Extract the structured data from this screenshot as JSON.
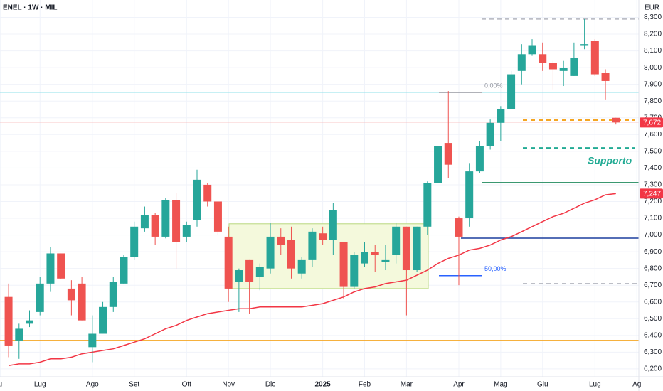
{
  "chart_data": {
    "type": "candlestick",
    "title": "ENEL · 1W · MIL",
    "currency": "EUR",
    "up_color": "#26a69a",
    "down_color": "#ef5350",
    "ohlc": [
      [
        6.63,
        6.71,
        6.27,
        6.34
      ],
      [
        6.37,
        6.47,
        6.26,
        6.44
      ],
      [
        6.47,
        6.55,
        6.45,
        6.49
      ],
      [
        6.54,
        6.75,
        6.52,
        6.71
      ],
      [
        6.71,
        6.93,
        6.66,
        6.89
      ],
      [
        6.89,
        6.89,
        6.74,
        6.74
      ],
      [
        6.68,
        6.73,
        6.52,
        6.61
      ],
      [
        6.71,
        6.75,
        6.49,
        6.49
      ],
      [
        6.33,
        6.52,
        6.24,
        6.41
      ],
      [
        6.41,
        6.6,
        6.41,
        6.57
      ],
      [
        6.57,
        6.75,
        6.54,
        6.72
      ],
      [
        6.71,
        6.88,
        6.71,
        6.87
      ],
      [
        6.87,
        7.08,
        6.85,
        7.05
      ],
      [
        7.04,
        7.17,
        7.02,
        7.12
      ],
      [
        7.12,
        7.13,
        6.94,
        6.99
      ],
      [
        6.99,
        7.22,
        6.98,
        7.21
      ],
      [
        7.21,
        7.25,
        6.8,
        6.96
      ],
      [
        6.99,
        7.08,
        6.96,
        7.06
      ],
      [
        7.09,
        7.39,
        7.05,
        7.33
      ],
      [
        7.3,
        7.31,
        7.17,
        7.2
      ],
      [
        7.2,
        7.2,
        7.0,
        7.02
      ],
      [
        6.99,
        7.05,
        6.6,
        6.68
      ],
      [
        6.72,
        6.8,
        6.54,
        6.79
      ],
      [
        6.85,
        6.85,
        6.53,
        6.72
      ],
      [
        6.75,
        6.83,
        6.67,
        6.81
      ],
      [
        6.8,
        7.07,
        6.77,
        6.99
      ],
      [
        6.99,
        7.04,
        6.88,
        6.94
      ],
      [
        6.97,
        7.05,
        6.74,
        6.8
      ],
      [
        6.77,
        6.87,
        6.74,
        6.85
      ],
      [
        6.85,
        7.04,
        6.81,
        7.02
      ],
      [
        7.01,
        7.05,
        6.94,
        6.97
      ],
      [
        6.97,
        7.19,
        6.88,
        7.15
      ],
      [
        6.96,
        6.96,
        6.62,
        6.69
      ],
      [
        6.69,
        6.9,
        6.68,
        6.88
      ],
      [
        6.83,
        6.96,
        6.81,
        6.9
      ],
      [
        6.9,
        6.94,
        6.78,
        6.88
      ],
      [
        6.84,
        6.94,
        6.79,
        6.85
      ],
      [
        6.88,
        7.07,
        6.83,
        7.05
      ],
      [
        7.05,
        7.05,
        6.52,
        6.79
      ],
      [
        6.79,
        7.05,
        6.78,
        7.05
      ],
      [
        7.05,
        7.32,
        7.0,
        7.31
      ],
      [
        7.31,
        7.53,
        7.31,
        7.53
      ],
      [
        7.55,
        7.86,
        7.34,
        7.42
      ],
      [
        7.1,
        7.11,
        6.7,
        6.99
      ],
      [
        7.1,
        7.43,
        7.05,
        7.38
      ],
      [
        7.38,
        7.56,
        7.37,
        7.53
      ],
      [
        7.53,
        7.69,
        7.51,
        7.67
      ],
      [
        7.67,
        7.77,
        7.56,
        7.75
      ],
      [
        7.75,
        7.98,
        7.75,
        7.96
      ],
      [
        7.98,
        8.14,
        7.9,
        8.08
      ],
      [
        8.08,
        8.17,
        8.07,
        8.13
      ],
      [
        8.08,
        8.15,
        7.98,
        8.03
      ],
      [
        8.03,
        8.04,
        7.87,
        7.99
      ],
      [
        7.98,
        8.04,
        7.89,
        8.0
      ],
      [
        7.95,
        8.15,
        7.95,
        8.06
      ],
      [
        8.13,
        8.29,
        8.11,
        8.14
      ],
      [
        8.16,
        8.17,
        7.95,
        7.96
      ],
      [
        7.97,
        7.99,
        7.81,
        7.92
      ],
      [
        7.7,
        7.7,
        7.66,
        7.672
      ]
    ],
    "ma": {
      "color": "#f23645",
      "values": [
        6.22,
        6.23,
        6.23,
        6.24,
        6.26,
        6.26,
        6.27,
        6.29,
        6.3,
        6.31,
        6.32,
        6.34,
        6.36,
        6.38,
        6.41,
        6.44,
        6.46,
        6.49,
        6.51,
        6.53,
        6.54,
        6.55,
        6.56,
        6.56,
        6.57,
        6.57,
        6.57,
        6.57,
        6.57,
        6.58,
        6.59,
        6.61,
        6.63,
        6.66,
        6.68,
        6.69,
        6.71,
        6.72,
        6.73,
        6.76,
        6.79,
        6.83,
        6.86,
        6.88,
        6.91,
        6.92,
        6.94,
        6.97,
        6.99,
        7.02,
        7.05,
        7.08,
        7.11,
        7.13,
        7.16,
        7.19,
        7.21,
        7.24,
        7.247
      ]
    },
    "xlim": [
      -0.82,
      60.19
    ],
    "xticks": [
      {
        "value": -0.8,
        "label": "u"
      },
      {
        "value": 3,
        "label": "Lug"
      },
      {
        "value": 8,
        "label": "Ago"
      },
      {
        "value": 12,
        "label": "Set"
      },
      {
        "value": 17,
        "label": "Ott"
      },
      {
        "value": 21,
        "label": "Nov"
      },
      {
        "value": 25,
        "label": "Dic"
      },
      {
        "value": 30,
        "label": "2025"
      },
      {
        "value": 34,
        "label": "Feb"
      },
      {
        "value": 38,
        "label": "Mar"
      },
      {
        "value": 43,
        "label": "Apr"
      },
      {
        "value": 47,
        "label": "Mag"
      },
      {
        "value": 51,
        "label": "Giu"
      },
      {
        "value": 56,
        "label": "Lug"
      },
      {
        "value": 60,
        "label": "Ag"
      }
    ],
    "ylim": [
      6.153,
      8.404
    ],
    "yticks": [
      {
        "value": 6.2,
        "label": "6,200"
      },
      {
        "value": 6.3,
        "label": "6,300"
      },
      {
        "value": 6.4,
        "label": "6,400"
      },
      {
        "value": 6.5,
        "label": "6,500"
      },
      {
        "value": 6.6,
        "label": "6,600"
      },
      {
        "value": 6.7,
        "label": "6,700"
      },
      {
        "value": 6.8,
        "label": "6,800"
      },
      {
        "value": 6.9,
        "label": "6,900"
      },
      {
        "value": 7.0,
        "label": "7,000"
      },
      {
        "value": 7.1,
        "label": "7,100"
      },
      {
        "value": 7.2,
        "label": "7,200"
      },
      {
        "value": 7.3,
        "label": "7,300"
      },
      {
        "value": 7.4,
        "label": "7,400"
      },
      {
        "value": 7.5,
        "label": "7,500"
      },
      {
        "value": 7.6,
        "label": "7,600"
      },
      {
        "value": 7.7,
        "label": "7,700"
      },
      {
        "value": 7.8,
        "label": "7,800"
      },
      {
        "value": 7.9,
        "label": "7,900"
      },
      {
        "value": 8.0,
        "label": "8,000"
      },
      {
        "value": 8.1,
        "label": "8,100"
      },
      {
        "value": 8.2,
        "label": "8,200"
      },
      {
        "value": 8.3,
        "label": "8,300"
      }
    ],
    "grid": true,
    "levels": [
      {
        "value": 7.852,
        "color": "#8fe0ea",
        "dash": false
      },
      {
        "value": 7.674,
        "color": "#f7b4b4",
        "dash": false
      },
      {
        "value": 6.37,
        "color": "#f5a623",
        "dash": false
      },
      {
        "value": 7.313,
        "color": "#1f8a5c",
        "dash": false
      },
      {
        "value": 6.981,
        "color": "#1c3f9e",
        "dash": false
      },
      {
        "value": 8.29,
        "color": "#b2b5be",
        "dash": true
      },
      {
        "value": 6.71,
        "color": "#b2b5be",
        "dash": true
      },
      {
        "value": 7.686,
        "color": "#f5a623",
        "dash": true
      },
      {
        "value": 7.52,
        "color": "#22ab94",
        "dash": true
      }
    ],
    "box": {
      "low": 6.68,
      "high": 7.067,
      "color": "#f4f9dc",
      "border": "#b8d77c"
    },
    "fib": [
      {
        "value": 7.852,
        "label": "0,00%",
        "color": "#9598a1"
      },
      {
        "value": 6.757,
        "label": "50,00%",
        "color": "#2962ff"
      }
    ],
    "annotation": {
      "text": "Supporto",
      "color": "#22ab94"
    },
    "price_tags": [
      {
        "value": 7.672,
        "label": "7,672",
        "color": "#f23645"
      },
      {
        "value": 7.247,
        "label": "7,247",
        "color": "#f23645"
      }
    ]
  }
}
